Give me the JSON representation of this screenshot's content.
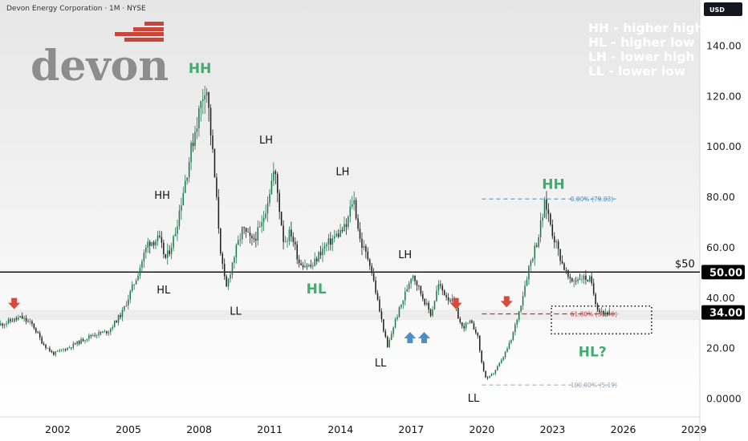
{
  "header": {
    "symbol_title": "Devon Energy Corporation · 1M · NYSE",
    "currency": "USD"
  },
  "logo": {
    "text": "devon"
  },
  "legend": [
    "HH - higher high",
    "HL - higher low",
    "LH - lower high",
    "LL - lower low"
  ],
  "colors": {
    "gradient_top": "#e6e6e6",
    "gradient_bottom": "#ffffff",
    "support_band": "#ebebeb",
    "candle_up": "#1e7a4e",
    "candle_down": "#202020",
    "annotation_green": "#3fae6c",
    "arrow_red": "#d64b3d",
    "arrow_blue": "#4a8fc9",
    "fib_top": "#4a8fc9",
    "fib_mid": "#c8362f",
    "fib_low": "#9aa8b5",
    "price_tag": "#000000"
  },
  "chart_data": {
    "type": "candlestick",
    "x_unit": "year",
    "y_unit": "USD",
    "xlim": [
      1999.55,
      2029.25
    ],
    "ylim": [
      -7.5,
      158
    ],
    "x_ticks": [
      "2002",
      "2005",
      "2008",
      "2011",
      "2014",
      "2017",
      "2020",
      "2023",
      "2026",
      "2029"
    ],
    "y_ticks": [
      "0.0000",
      "20.00",
      "40.00",
      "60.00",
      "80.00",
      "100.00",
      "120.00",
      "140.00"
    ],
    "current_price": "34.00",
    "horizontal_levels": [
      {
        "value": 50,
        "label": "$50",
        "price_label": "50.00"
      }
    ],
    "support_band": [
      31,
      35
    ],
    "fib_levels": [
      {
        "value": 79.03,
        "label": "0.00% (79.03)",
        "x_start": 2020.0,
        "x_end": 2025.8
      },
      {
        "value": 33.4,
        "label": "61.80% (33.40)",
        "x_start": 2020.0,
        "x_end": 2025.8
      },
      {
        "value": 5.19,
        "label": "100.00% (5.19)",
        "x_start": 2020.0,
        "x_end": 2025.8
      }
    ],
    "annotations": [
      {
        "text": "HH",
        "x": 2007.55,
        "y": 129,
        "style": "big"
      },
      {
        "text": "HH",
        "x": 2006.1,
        "y": 79,
        "style": "small"
      },
      {
        "text": "HL",
        "x": 2006.2,
        "y": 41.5,
        "style": "small"
      },
      {
        "text": "LL",
        "x": 2009.3,
        "y": 33,
        "style": "small"
      },
      {
        "text": "LH",
        "x": 2010.55,
        "y": 101,
        "style": "small"
      },
      {
        "text": "LH",
        "x": 2013.8,
        "y": 88.5,
        "style": "small"
      },
      {
        "text": "HL",
        "x": 2012.55,
        "y": 41.5,
        "style": "big"
      },
      {
        "text": "LH",
        "x": 2016.45,
        "y": 55.5,
        "style": "small"
      },
      {
        "text": "LL",
        "x": 2015.45,
        "y": 12.5,
        "style": "small"
      },
      {
        "text": "LL",
        "x": 2019.4,
        "y": -1.5,
        "style": "small"
      },
      {
        "text": "HH",
        "x": 2022.55,
        "y": 83,
        "style": "big"
      },
      {
        "text": "HL?",
        "x": 2024.1,
        "y": 16.5,
        "style": "big"
      }
    ],
    "arrows": [
      {
        "x": 2000.15,
        "y": 37.5,
        "dir": "down",
        "color": "red"
      },
      {
        "x": 2018.9,
        "y": 37.5,
        "dir": "down",
        "color": "red"
      },
      {
        "x": 2021.05,
        "y": 38.2,
        "dir": "down",
        "color": "red"
      },
      {
        "x": 2016.95,
        "y": 24,
        "dir": "up",
        "color": "blue"
      },
      {
        "x": 2017.55,
        "y": 24,
        "dir": "up",
        "color": "blue"
      }
    ],
    "dotted_box": {
      "x0": 2022.95,
      "x1": 2027.2,
      "y0": 25.5,
      "y1": 36.5
    },
    "price_path": [
      [
        1999.55,
        29
      ],
      [
        2000.5,
        32
      ],
      [
        2001.0,
        29
      ],
      [
        2001.4,
        22
      ],
      [
        2001.85,
        17.5
      ],
      [
        2002.5,
        20
      ],
      [
        2003.0,
        22.5
      ],
      [
        2003.5,
        25
      ],
      [
        2004.2,
        26.5
      ],
      [
        2004.8,
        34
      ],
      [
        2005.4,
        48
      ],
      [
        2005.9,
        62
      ],
      [
        2006.35,
        63
      ],
      [
        2006.65,
        55
      ],
      [
        2007.0,
        64
      ],
      [
        2007.5,
        88
      ],
      [
        2007.85,
        105
      ],
      [
        2008.35,
        126
      ],
      [
        2008.65,
        95
      ],
      [
        2009.0,
        55
      ],
      [
        2009.2,
        43
      ],
      [
        2009.5,
        55
      ],
      [
        2009.9,
        67
      ],
      [
        2010.3,
        62
      ],
      [
        2010.7,
        68
      ],
      [
        2011.25,
        91
      ],
      [
        2011.65,
        62
      ],
      [
        2011.95,
        66
      ],
      [
        2012.3,
        54
      ],
      [
        2012.85,
        52
      ],
      [
        2013.2,
        58
      ],
      [
        2013.7,
        63
      ],
      [
        2014.3,
        68
      ],
      [
        2014.6,
        80
      ],
      [
        2014.9,
        62
      ],
      [
        2015.3,
        54
      ],
      [
        2015.75,
        33
      ],
      [
        2016.05,
        20
      ],
      [
        2016.35,
        30
      ],
      [
        2016.75,
        40
      ],
      [
        2017.1,
        50
      ],
      [
        2017.5,
        41
      ],
      [
        2017.9,
        33
      ],
      [
        2018.2,
        45
      ],
      [
        2018.6,
        40
      ],
      [
        2018.85,
        38
      ],
      [
        2019.2,
        28
      ],
      [
        2019.55,
        30
      ],
      [
        2019.85,
        26
      ],
      [
        2020.05,
        14
      ],
      [
        2020.25,
        7
      ],
      [
        2020.55,
        10
      ],
      [
        2020.9,
        15
      ],
      [
        2021.3,
        23
      ],
      [
        2021.65,
        35
      ],
      [
        2022.05,
        52
      ],
      [
        2022.45,
        64
      ],
      [
        2022.75,
        78
      ],
      [
        2023.05,
        66
      ],
      [
        2023.45,
        54
      ],
      [
        2023.8,
        46
      ],
      [
        2024.25,
        48
      ],
      [
        2024.65,
        47
      ],
      [
        2024.95,
        36
      ],
      [
        2025.25,
        34
      ],
      [
        2025.45,
        34
      ]
    ]
  }
}
